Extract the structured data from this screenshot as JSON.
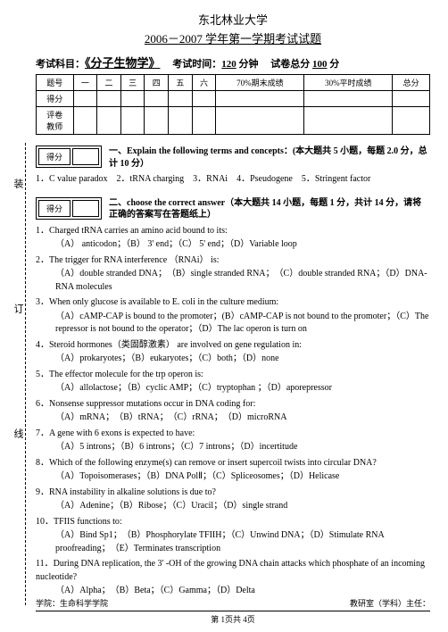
{
  "header": {
    "university": "东北林业大学",
    "yearline": "2006－2007 学年第一学期考试试题",
    "subject_label": "考试科目：",
    "course": "《分子生物学》",
    "time_label": "考试时间：",
    "time_value": "120",
    "time_unit": "分钟",
    "total_label": "试卷总分",
    "total_value": "100",
    "total_unit": "分"
  },
  "score_table": {
    "headers": [
      "题号",
      "一",
      "二",
      "三",
      "四",
      "五",
      "六",
      "70%期末成绩",
      "30%平时成绩",
      "总分"
    ],
    "row2_label": "得分",
    "row3_label": "评卷\n教师"
  },
  "section1": {
    "box_label": "得分",
    "title": "一、Explain the following terms and concepts：(本大题共 5 小题，每题 2.0 分，总计 10 分）",
    "line": "1．C value paradox　2．tRNA charging　3．RNAi　4．Pseudogene　5．Stringent factor"
  },
  "section2": {
    "box_label": "得分",
    "title": "二、choose the correct answer（本大题共 14 小题，每题 1 分，共计 14 分，请将正确的答案写在答题纸上）"
  },
  "questions": [
    {
      "n": "1．",
      "stem": "Charged tRNA carries an amino acid bound to its:",
      "opts": "（A） anticodon；（B） 3' end；（C） 5' end；（D）Variable loop"
    },
    {
      "n": "2．",
      "stem": "The trigger for RNA interference （RNAi） is:",
      "opts": "（A）double stranded DNA；　（B）single stranded RNA；　（C）double stranded RNA；（D）DNA-RNA molecules"
    },
    {
      "n": "3．",
      "stem": "When only glucose is available to E. coli in the culture medium:",
      "opts": "（A）cAMP-CAP is bound to the promoter；(B）cAMP-CAP is not bound to the promoter；（C）The repressor is not bound to the operator；（D）The lac operon is turn on"
    },
    {
      "n": "4．",
      "stem": "Steroid hormones（类固醇激素） are involved on gene regulation in:",
      "opts": "（A）prokaryotes；（B）eukaryotes；（C）both；（D）none"
    },
    {
      "n": "5．",
      "stem": "The effector molecule for the trp operon is:",
      "opts": "（A）allolactose；（B）cyclic AMP；（C）tryptophan ；（D）aporepressor"
    },
    {
      "n": "6．",
      "stem": "Nonsense suppressor mutations occur in DNA coding for:",
      "opts": "（A）mRNA；　（B）tRNA；　（C）rRNA；　（D）microRNA"
    },
    {
      "n": "7．",
      "stem": "A gene with 6 exons is expected to have:",
      "opts": "（A）5 introns；（B）6 introns；（C）7 introns；（D）incertitude"
    },
    {
      "n": "8．",
      "stem": "Which of the following enzyme(s) can remove or insert supercoil twists into circular DNA?",
      "opts": "（A）Topoisomerases；（B）DNA PolⅡ；（C）Spliceosomes；（D）Helicase"
    },
    {
      "n": "9．",
      "stem": "RNA instability in alkaline solutions is due to?",
      "opts": "（A）Adenine；（B）Ribose；（C）Uracil；（D）single strand"
    },
    {
      "n": "10．",
      "stem": "TFIIS functions to:",
      "opts": "（A）Bind Sp1；　（B）Phosphorylate TFIIH；（C）Unwind DNA；（D）Stimulate RNA proofreading；　（E）Terminates transcription"
    },
    {
      "n": "11．",
      "stem": "During DNA replication, the 3' -OH of the growing DNA chain attacks which phosphate of an incoming nucleotide?",
      "opts": "（A）Alpha；　（B）Beta；（C）Gamma；（D）Delta"
    }
  ],
  "side": {
    "c1": "装",
    "c2": "订",
    "c3": "线"
  },
  "footer": {
    "left": "学院：生命科学学院",
    "right": "教研室（学科）主任：",
    "page": "第 1页共 4页"
  }
}
